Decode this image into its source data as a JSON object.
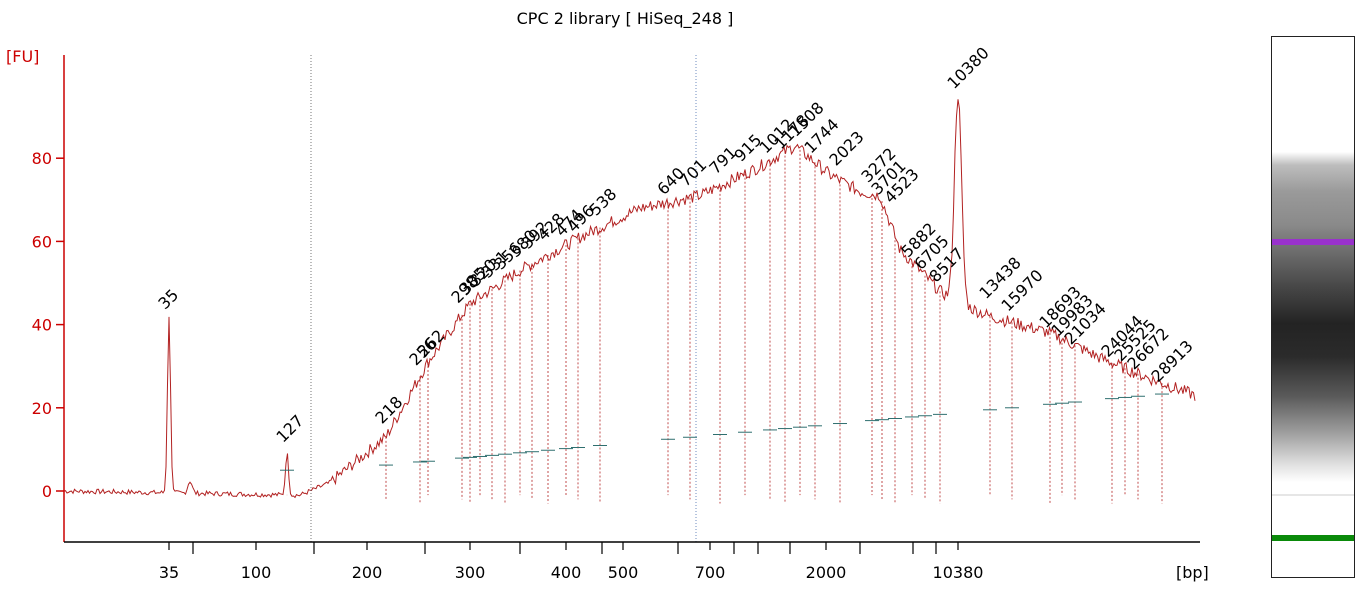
{
  "chart_data": {
    "type": "line",
    "title": "CPC 2 library  [ HiSeq_248 ]",
    "ylabel": "[FU]",
    "xlabel": "[bp]",
    "ylim": [
      -12,
      100
    ],
    "y_ticks": [
      0,
      20,
      40,
      60,
      80
    ],
    "x_tick_labels": [
      "35",
      "100",
      "200",
      "300",
      "400",
      "500",
      "700",
      "2000",
      "10380"
    ],
    "grid": false,
    "colors": {
      "trace": "#b22222",
      "axis": "#cc0000",
      "lower_marker": "#008000",
      "upper_marker": "#9932cc",
      "peak_label": "#000000",
      "baseline": "#2f6f6f"
    },
    "markers": [
      {
        "label": "35",
        "role": "lower",
        "fu": 42
      },
      {
        "label": "10380",
        "role": "upper",
        "fu": 95
      }
    ],
    "peaks": [
      {
        "label": "127",
        "fu": 10.5
      },
      {
        "label": "218",
        "fu": 15
      },
      {
        "label": "256",
        "fu": 29
      },
      {
        "label": "262",
        "fu": 31
      },
      {
        "label": "298",
        "fu": 44
      },
      {
        "label": "305",
        "fu": 46
      },
      {
        "label": "320",
        "fu": 48
      },
      {
        "label": "331",
        "fu": 50
      },
      {
        "label": "356",
        "fu": 52
      },
      {
        "label": "380",
        "fu": 55
      },
      {
        "label": "392",
        "fu": 57
      },
      {
        "label": "428",
        "fu": 59
      },
      {
        "label": "474",
        "fu": 60
      },
      {
        "label": "496",
        "fu": 61
      },
      {
        "label": "538",
        "fu": 65
      },
      {
        "label": "640",
        "fu": 70
      },
      {
        "label": "701",
        "fu": 72
      },
      {
        "label": "791",
        "fu": 75
      },
      {
        "label": "915",
        "fu": 78
      },
      {
        "label": "1012",
        "fu": 80
      },
      {
        "label": "1178",
        "fu": 81
      },
      {
        "label": "1508",
        "fu": 84
      },
      {
        "label": "1744",
        "fu": 80
      },
      {
        "label": "2023",
        "fu": 77
      },
      {
        "label": "3272",
        "fu": 73
      },
      {
        "label": "3701",
        "fu": 70
      },
      {
        "label": "4523",
        "fu": 68
      },
      {
        "label": "5882",
        "fu": 55
      },
      {
        "label": "6705",
        "fu": 52
      },
      {
        "label": "8517",
        "fu": 49
      },
      {
        "label": "13438",
        "fu": 45
      },
      {
        "label": "15970",
        "fu": 42
      },
      {
        "label": "18693",
        "fu": 38
      },
      {
        "label": "19983",
        "fu": 36
      },
      {
        "label": "21034",
        "fu": 34
      },
      {
        "label": "24044",
        "fu": 31
      },
      {
        "label": "25525",
        "fu": 30
      },
      {
        "label": "26672",
        "fu": 28
      },
      {
        "label": "28913",
        "fu": 25
      }
    ]
  }
}
